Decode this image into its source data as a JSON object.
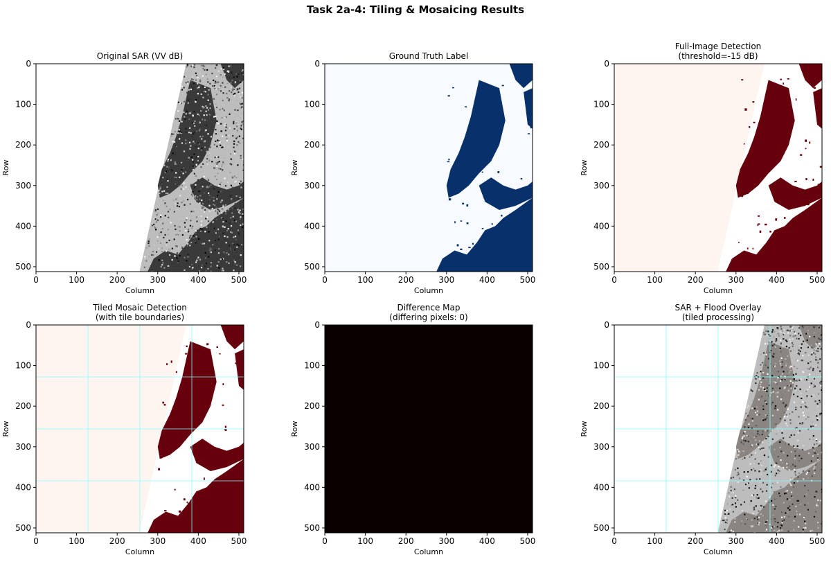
{
  "figure_title": "Task 2a-4: Tiling & Mosaicing Results",
  "colors": {
    "reds_low": "#fff5f0",
    "reds_high": "#67000d",
    "blues_low": "#f7fbff",
    "blues_high": "#08306b",
    "diff_black": "#0a0000",
    "tile_boundary": "#7fffff"
  },
  "chart_data": [
    {
      "type": "heatmap",
      "id": "original-sar",
      "title_lines": [
        "Original SAR (VV dB)"
      ],
      "xlabel": "Column",
      "ylabel": "Row",
      "xlim": [
        0,
        512
      ],
      "ylim": [
        512,
        0
      ],
      "xticks": [
        "0",
        "100",
        "200",
        "300",
        "400",
        "500"
      ],
      "yticks": [
        "0",
        "100",
        "200",
        "300",
        "400",
        "500"
      ],
      "colormap": "gray"
    },
    {
      "type": "heatmap",
      "id": "ground-truth",
      "title_lines": [
        "Ground Truth Label"
      ],
      "xlabel": "Column",
      "ylabel": "Row",
      "xlim": [
        0,
        512
      ],
      "ylim": [
        512,
        0
      ],
      "xticks": [
        "0",
        "100",
        "200",
        "300",
        "400",
        "500"
      ],
      "yticks": [
        "0",
        "100",
        "200",
        "300",
        "400",
        "500"
      ],
      "colormap": "Blues"
    },
    {
      "type": "heatmap",
      "id": "full-image-detection",
      "title_lines": [
        "Full-Image Detection",
        "(threshold=-15 dB)"
      ],
      "xlabel": "Column",
      "ylabel": "Row",
      "xlim": [
        0,
        512
      ],
      "ylim": [
        512,
        0
      ],
      "xticks": [
        "0",
        "100",
        "200",
        "300",
        "400",
        "500"
      ],
      "yticks": [
        "0",
        "100",
        "200",
        "300",
        "400",
        "500"
      ],
      "colormap": "Reds"
    },
    {
      "type": "heatmap",
      "id": "tiled-mosaic-detection",
      "title_lines": [
        "Tiled Mosaic Detection",
        "(with tile boundaries)"
      ],
      "xlabel": "Column",
      "ylabel": "Row",
      "xlim": [
        0,
        512
      ],
      "ylim": [
        512,
        0
      ],
      "xticks": [
        "0",
        "100",
        "200",
        "300",
        "400",
        "500"
      ],
      "yticks": [
        "0",
        "100",
        "200",
        "300",
        "400",
        "500"
      ],
      "colormap": "Reds",
      "tile_boundaries": [
        128,
        256,
        384
      ]
    },
    {
      "type": "heatmap",
      "id": "difference-map",
      "title_lines": [
        "Difference Map",
        "(differing pixels: 0)"
      ],
      "xlabel": "Column",
      "ylabel": "Row",
      "xlim": [
        0,
        512
      ],
      "ylim": [
        512,
        0
      ],
      "xticks": [
        "0",
        "100",
        "200",
        "300",
        "400",
        "500"
      ],
      "yticks": [
        "0",
        "100",
        "200",
        "300",
        "400",
        "500"
      ],
      "colormap": "hot",
      "differing_pixels": 0
    },
    {
      "type": "heatmap",
      "id": "sar-flood-overlay",
      "title_lines": [
        "SAR + Flood Overlay",
        "(tiled processing)"
      ],
      "xlabel": "Column",
      "ylabel": "Row",
      "xlim": [
        0,
        512
      ],
      "ylim": [
        512,
        0
      ],
      "xticks": [
        "0",
        "100",
        "200",
        "300",
        "400",
        "500"
      ],
      "yticks": [
        "0",
        "100",
        "200",
        "300",
        "400",
        "500"
      ],
      "colormap": "gray",
      "tile_boundaries": [
        128,
        256,
        384
      ]
    }
  ]
}
